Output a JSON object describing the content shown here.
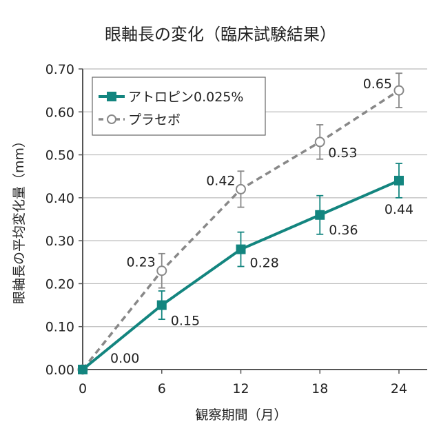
{
  "chart_data": {
    "type": "line",
    "title": "眼軸長の変化（臨床試験結果）",
    "xlabel": "観察期間（月）",
    "ylabel": "眼軸長の平均変化量（mm）",
    "x": [
      0,
      6,
      12,
      18,
      24
    ],
    "xlim": [
      0,
      26
    ],
    "ylim": [
      0,
      0.7
    ],
    "xticks": [
      "0",
      "6",
      "12",
      "18",
      "24"
    ],
    "yticks": [
      "0.00",
      "0.10",
      "0.20",
      "0.30",
      "0.40",
      "0.50",
      "0.60",
      "0.70"
    ],
    "grid": true,
    "legend_position": "top-left",
    "series": [
      {
        "name": "アトロピン0.025%",
        "values": [
          0.0,
          0.15,
          0.28,
          0.36,
          0.44
        ],
        "errors": [
          0,
          0.033,
          0.04,
          0.045,
          0.04
        ],
        "labels": [
          "0.00",
          "0.15",
          "0.28",
          "0.36",
          "0.44"
        ],
        "color": "#13857f",
        "marker": "filled-square",
        "line": "solid"
      },
      {
        "name": "プラセボ",
        "values": [
          0.0,
          0.23,
          0.42,
          0.53,
          0.65
        ],
        "errors": [
          0,
          0.04,
          0.042,
          0.04,
          0.04
        ],
        "labels": [
          "",
          "0.23",
          "0.42",
          "0.53",
          "0.65"
        ],
        "color": "#888888",
        "marker": "open-circle",
        "line": "dashed"
      }
    ]
  }
}
